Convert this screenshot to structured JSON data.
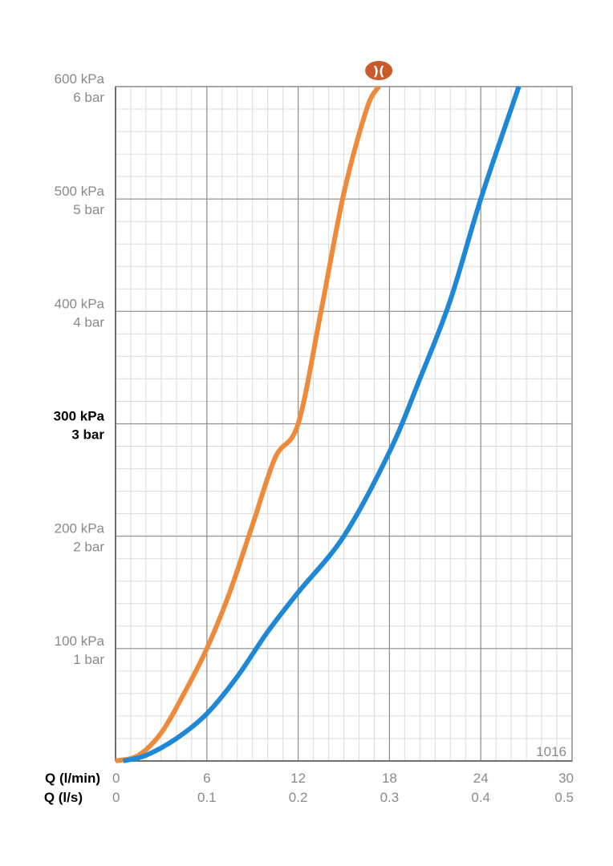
{
  "chart_data": {
    "type": "line",
    "x_axes": [
      {
        "name": "Q (l/min)",
        "ticks": [
          "0",
          "6",
          "12",
          "18",
          "24",
          "30"
        ],
        "range": [
          0,
          30
        ]
      },
      {
        "name": "Q (l/s)",
        "ticks": [
          "0",
          "0.1",
          "0.2",
          "0.3",
          "0.4",
          "0.5"
        ],
        "range": [
          0,
          0.5
        ]
      }
    ],
    "y_axis": {
      "range": [
        0,
        600
      ],
      "unit": "kPa",
      "ticks": [
        {
          "value": 100,
          "kpa": "100 kPa",
          "bar": "1 bar",
          "bold": false
        },
        {
          "value": 200,
          "kpa": "200 kPa",
          "bar": "2 bar",
          "bold": false
        },
        {
          "value": 300,
          "kpa": "300 kPa",
          "bar": "3 bar",
          "bold": true
        },
        {
          "value": 400,
          "kpa": "400 kPa",
          "bar": "4 bar",
          "bold": false
        },
        {
          "value": 500,
          "kpa": "500 kPa",
          "bar": "5 bar",
          "bold": false
        },
        {
          "value": 600,
          "kpa": "600 kPa",
          "bar": "6 bar",
          "bold": false
        }
      ]
    },
    "grid": true,
    "corner_label": "1016",
    "series": [
      {
        "color": "#ee8a3c",
        "points": [
          [
            0,
            0
          ],
          [
            1.5,
            5
          ],
          [
            3,
            25
          ],
          [
            4.5,
            60
          ],
          [
            6,
            100
          ],
          [
            7.5,
            150
          ],
          [
            9,
            210
          ],
          [
            10.5,
            270
          ],
          [
            12,
            300
          ],
          [
            13.5,
            400
          ],
          [
            15,
            505
          ],
          [
            16.5,
            580
          ],
          [
            17.3,
            600
          ]
        ]
      },
      {
        "color": "#1f88d6",
        "points": [
          [
            0.5,
            0
          ],
          [
            2,
            5
          ],
          [
            4,
            20
          ],
          [
            6,
            42
          ],
          [
            8,
            75
          ],
          [
            10,
            115
          ],
          [
            12,
            150
          ],
          [
            15,
            200
          ],
          [
            18,
            275
          ],
          [
            20,
            340
          ],
          [
            22,
            410
          ],
          [
            24,
            500
          ],
          [
            26.5,
            600
          ]
        ]
      }
    ],
    "marker": {
      "color": "#c95a2c",
      "symbol": ")(",
      "x": 17.3
    }
  }
}
